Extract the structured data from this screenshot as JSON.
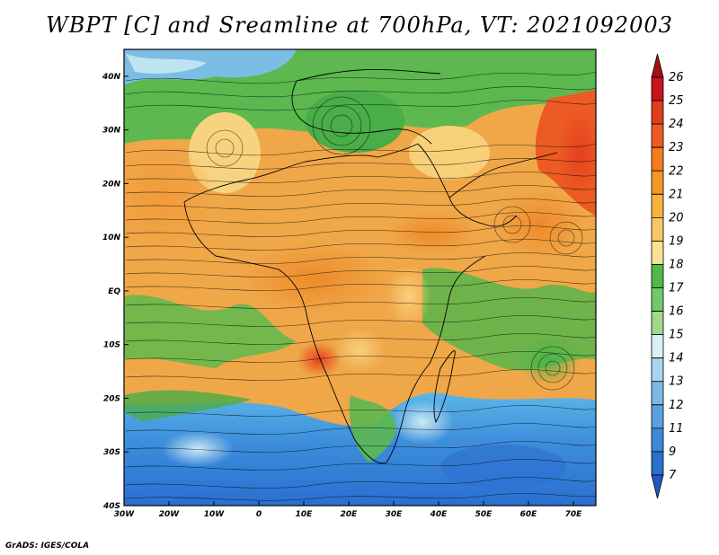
{
  "title": "WBPT [C] and Sreamline at 700hPa, VT: 2021092003",
  "credit": "GrADS: IGES/COLA",
  "map": {
    "lon_range": [
      -30,
      75
    ],
    "lat_range": [
      -40,
      45
    ],
    "lon_ticks": [
      "30W",
      "20W",
      "10W",
      "0",
      "10E",
      "20E",
      "30E",
      "40E",
      "50E",
      "60E",
      "70E"
    ],
    "lat_ticks": [
      "40N",
      "30N",
      "20N",
      "10N",
      "EQ",
      "10S",
      "20S",
      "30S",
      "40S"
    ],
    "field": "wet-bulb potential temperature",
    "overlay": "streamlines"
  },
  "colorbar": {
    "labels": [
      "26",
      "25",
      "24",
      "23",
      "22",
      "21",
      "20",
      "19",
      "18",
      "17",
      "16",
      "15",
      "14",
      "13",
      "12",
      "11",
      "9",
      "7"
    ],
    "colors": [
      "#a50f15",
      "#c8141c",
      "#e03c1e",
      "#ee5b22",
      "#f47b1e",
      "#f59826",
      "#f7b33d",
      "#f8c765",
      "#fbe193",
      "#52b84a",
      "#72c86a",
      "#9fd98c",
      "#d8f0f6",
      "#aad3ef",
      "#7cb8e5",
      "#5aa0dd",
      "#3d88d8",
      "#2a70cc",
      "#2159c4"
    ]
  }
}
